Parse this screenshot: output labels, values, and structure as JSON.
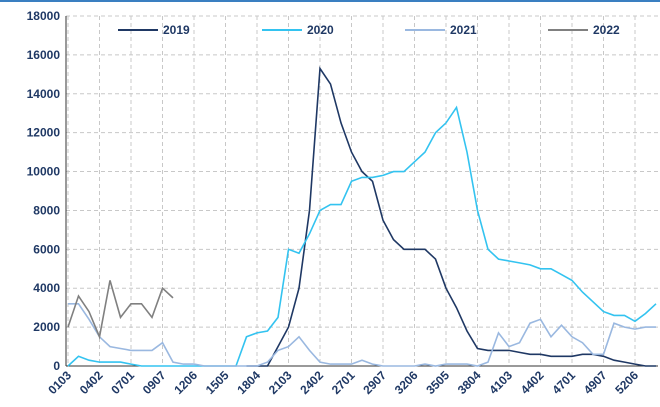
{
  "chart_data": {
    "type": "line",
    "categories": [
      "0103",
      null,
      null,
      "0402",
      null,
      null,
      "0701",
      null,
      null,
      "0907",
      null,
      null,
      "1206",
      null,
      null,
      "1505",
      null,
      null,
      "1804",
      null,
      null,
      "2103",
      null,
      null,
      "2402",
      null,
      null,
      "2701",
      null,
      null,
      "2907",
      null,
      null,
      "3206",
      null,
      null,
      "3505",
      null,
      null,
      "3804",
      null,
      null,
      "4103",
      null,
      null,
      "4402",
      null,
      null,
      "4701",
      null,
      null,
      "4907",
      null,
      null,
      "5206",
      null,
      null
    ],
    "series": [
      {
        "name": "2019",
        "color": "#1f3864",
        "values": [
          null,
          null,
          null,
          null,
          null,
          null,
          null,
          null,
          null,
          null,
          null,
          null,
          null,
          null,
          null,
          null,
          null,
          0,
          0,
          0,
          1000,
          2000,
          4000,
          8000,
          15300,
          14500,
          12500,
          11000,
          10000,
          9500,
          7500,
          6500,
          6000,
          6000,
          6000,
          5500,
          4000,
          3000,
          1800,
          900,
          800,
          800,
          800,
          700,
          600,
          600,
          500,
          500,
          500,
          600,
          600,
          500,
          300,
          200,
          100,
          0,
          0
        ]
      },
      {
        "name": "2020",
        "color": "#33c3f0",
        "values": [
          0,
          500,
          300,
          200,
          200,
          200,
          100,
          0,
          0,
          0,
          0,
          0,
          0,
          0,
          0,
          0,
          0,
          1500,
          1700,
          1800,
          2500,
          6000,
          5800,
          6800,
          8000,
          8300,
          8300,
          9500,
          9700,
          9700,
          9800,
          10000,
          10000,
          10500,
          11000,
          12000,
          12500,
          13300,
          11000,
          8000,
          6000,
          5500,
          5400,
          5300,
          5200,
          5000,
          5000,
          4700,
          4400,
          3800,
          3300,
          2800,
          2600,
          2600,
          2300,
          2700,
          3200
        ]
      },
      {
        "name": "2021",
        "color": "#9ab8e0",
        "values": [
          3200,
          3200,
          2400,
          1500,
          1000,
          900,
          800,
          800,
          800,
          1200,
          200,
          100,
          100,
          0,
          0,
          0,
          0,
          0,
          0,
          200,
          800,
          1000,
          1500,
          800,
          200,
          100,
          100,
          100,
          300,
          100,
          0,
          0,
          0,
          0,
          100,
          0,
          100,
          100,
          100,
          0,
          200,
          1700,
          1000,
          1200,
          2200,
          2400,
          1500,
          2100,
          1500,
          1200,
          600,
          600,
          2200,
          2000,
          1900,
          2000,
          2000
        ]
      },
      {
        "name": "2022",
        "color": "#808080",
        "values": [
          2000,
          3600,
          2800,
          1500,
          4400,
          2500,
          3200,
          3200,
          2500,
          4000,
          3500,
          null,
          null,
          null,
          null,
          null,
          null,
          null,
          null,
          null,
          null,
          null,
          null,
          null,
          null,
          null,
          null,
          null,
          null,
          null,
          null,
          null,
          null,
          null,
          null,
          null,
          null,
          null,
          null,
          null,
          null,
          null,
          null,
          null,
          null,
          null,
          null,
          null,
          null,
          null,
          null,
          null,
          null,
          null,
          null,
          null,
          null
        ]
      }
    ],
    "ylim": [
      0,
      18000
    ],
    "yticks": [
      0,
      2000,
      4000,
      6000,
      8000,
      10000,
      12000,
      14000,
      16000,
      18000
    ],
    "grid": true
  }
}
